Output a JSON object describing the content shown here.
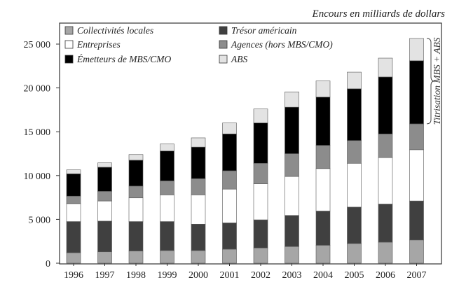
{
  "chart_data": {
    "type": "bar",
    "stacked": true,
    "title": "",
    "unit_label": "Encours en milliards de dollars",
    "xlabel": "",
    "ylabel": "",
    "ylim": [
      0,
      26000
    ],
    "yticks": [
      0,
      5000,
      10000,
      15000,
      20000,
      25000
    ],
    "ytick_labels": [
      "0",
      "5 000",
      "10 000",
      "15 000",
      "20 000",
      "25 000"
    ],
    "categories": [
      "1996",
      "1997",
      "1998",
      "1999",
      "2000",
      "2001",
      "2002",
      "2003",
      "2004",
      "2005",
      "2006",
      "2007"
    ],
    "series": [
      {
        "name": "Collectivités locales",
        "color": "#a6a6a6",
        "values": [
          1200,
          1300,
          1400,
          1450,
          1450,
          1600,
          1750,
          1900,
          2050,
          2250,
          2400,
          2650
        ]
      },
      {
        "name": "Trésor américain",
        "color": "#404040",
        "values": [
          3550,
          3500,
          3350,
          3300,
          3000,
          3000,
          3200,
          3550,
          3900,
          4150,
          4350,
          4450
        ]
      },
      {
        "name": "Entreprises",
        "color": "#ffffff",
        "values": [
          2050,
          2300,
          2700,
          3050,
          3350,
          3850,
          4100,
          4450,
          4850,
          5000,
          5300,
          5850
        ]
      },
      {
        "name": "Agences (hors MBS/CMO)",
        "color": "#8c8c8c",
        "values": [
          850,
          1100,
          1350,
          1600,
          1850,
          2100,
          2350,
          2600,
          2650,
          2600,
          2700,
          2950
        ]
      },
      {
        "name": "Émetteurs de MBS/CMO",
        "color": "#000000",
        "values": [
          2550,
          2750,
          2950,
          3400,
          3600,
          4200,
          4600,
          5300,
          5500,
          5900,
          6500,
          7200
        ]
      },
      {
        "name": "ABS",
        "color": "#e3e3e3",
        "values": [
          450,
          500,
          650,
          800,
          1050,
          1250,
          1600,
          1750,
          1850,
          1900,
          2150,
          2550
        ]
      }
    ],
    "legend_order": [
      0,
      1,
      2,
      3,
      4,
      5
    ],
    "legend": "top-left",
    "brace_label": "Titrisation MBS + ABS",
    "grid": false
  }
}
